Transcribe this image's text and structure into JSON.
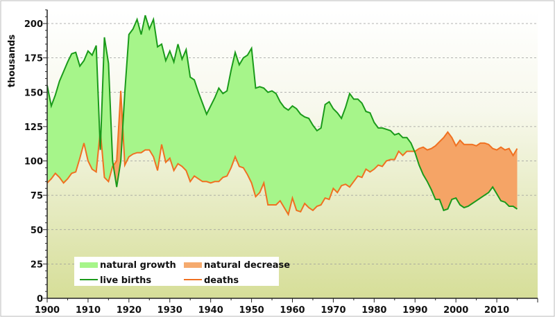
{
  "chart_data": {
    "type": "area",
    "title": "",
    "xlabel": "",
    "ylabel": "thousands",
    "xlim": [
      1900,
      2020
    ],
    "ylim": [
      0,
      210
    ],
    "x_ticks": [
      1900,
      1910,
      1920,
      1930,
      1940,
      1950,
      1960,
      1970,
      1980,
      1990,
      2000,
      2010
    ],
    "y_ticks": [
      0,
      25,
      50,
      75,
      100,
      125,
      150,
      175,
      200
    ],
    "grid": "horizontal dashed",
    "legend_position": "bottom-left",
    "legend": [
      {
        "label": "natural growth",
        "kind": "fill",
        "color": "#a6f58a"
      },
      {
        "label": "natural decrease",
        "kind": "fill",
        "color": "#f5aa6e"
      },
      {
        "label": "live births",
        "kind": "line",
        "color": "#1a9a1a"
      },
      {
        "label": "deaths",
        "kind": "line",
        "color": "#f07020"
      }
    ],
    "colors": {
      "births": "#1a9a1a",
      "deaths": "#f07020",
      "growth": "#a6f58a",
      "decrease": "#f5a466"
    },
    "years_start": 1900,
    "series": [
      {
        "name": "live births",
        "values": [
          155,
          140,
          148,
          158,
          165,
          172,
          178,
          179,
          169,
          173,
          180,
          177,
          184,
          108,
          190,
          171,
          100,
          81,
          100,
          150,
          192,
          196,
          203,
          192,
          206,
          196,
          203,
          183,
          185,
          173,
          180,
          172,
          185,
          174,
          181,
          161,
          159,
          150,
          142,
          134,
          140,
          146,
          153,
          149,
          151,
          166,
          179,
          170,
          175,
          177,
          182,
          153,
          154,
          153,
          150,
          151,
          149,
          143,
          139,
          137,
          140,
          138,
          134,
          132,
          131,
          126,
          122,
          124,
          141,
          143,
          138,
          135,
          131,
          139,
          149,
          145,
          145,
          142,
          136,
          135,
          128,
          124,
          124,
          123,
          122,
          119,
          120,
          117,
          117,
          113,
          106,
          97,
          90,
          85,
          79,
          72,
          72,
          64,
          65,
          72,
          73,
          68,
          66,
          67,
          69,
          71,
          73,
          75,
          77,
          81,
          76,
          71,
          70,
          67,
          67,
          65
        ]
      },
      {
        "name": "deaths",
        "values": [
          84,
          87,
          91,
          88,
          84,
          87,
          91,
          92,
          102,
          113,
          100,
          94,
          92,
          122,
          88,
          85,
          96,
          100,
          151,
          97,
          103,
          105,
          106,
          106,
          108,
          108,
          103,
          93,
          112,
          99,
          102,
          93,
          98,
          96,
          93,
          85,
          89,
          87,
          85,
          85,
          84,
          85,
          85,
          88,
          89,
          95,
          103,
          96,
          95,
          90,
          84,
          74,
          77,
          84,
          68,
          68,
          68,
          71,
          66,
          61,
          73,
          64,
          63,
          69,
          66,
          64,
          67,
          68,
          73,
          72,
          80,
          77,
          82,
          83,
          81,
          85,
          89,
          88,
          94,
          92,
          94,
          97,
          96,
          100,
          101,
          101,
          107,
          104,
          107,
          107,
          107,
          109,
          110,
          108,
          109,
          111,
          114,
          117,
          121,
          117,
          111,
          115,
          112,
          112,
          112,
          111,
          113,
          113,
          112,
          109,
          108,
          110,
          108,
          109,
          104,
          109
        ]
      }
    ]
  }
}
